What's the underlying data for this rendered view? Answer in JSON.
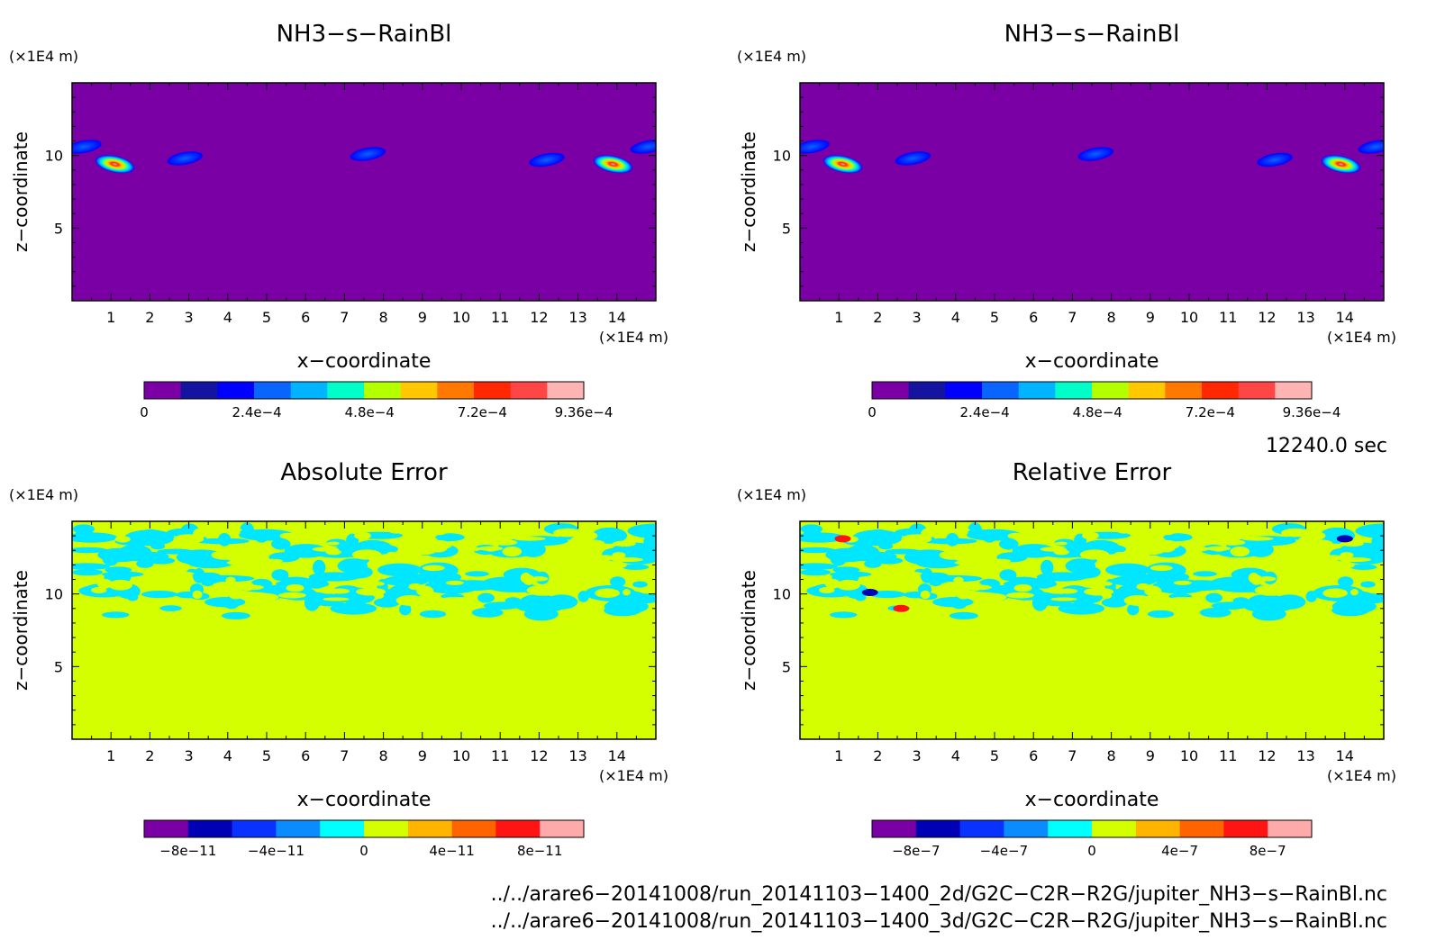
{
  "panels": [
    {
      "title": "NH3−s−RainBl",
      "unit_x": "(×1E4 m)",
      "unit_y": "(×1E4 m)",
      "xlabel": "x−coordinate",
      "ylabel": "z−coordinate",
      "colorbar_labels": [
        "0",
        "2.4e−4",
        "4.8e−4",
        "7.2e−4",
        "9.36e−4"
      ]
    },
    {
      "title": "NH3−s−RainBl",
      "unit_x": "(×1E4 m)",
      "unit_y": "(×1E4 m)",
      "xlabel": "x−coordinate",
      "ylabel": "z−coordinate",
      "colorbar_labels": [
        "0",
        "2.4e−4",
        "4.8e−4",
        "7.2e−4",
        "9.36e−4"
      ]
    },
    {
      "title": "Absolute Error",
      "unit_x": "(×1E4 m)",
      "unit_y": "(×1E4 m)",
      "xlabel": "x−coordinate",
      "ylabel": "z−coordinate",
      "colorbar_labels": [
        "−8e−11",
        "−4e−11",
        "0",
        "4e−11",
        "8e−11"
      ]
    },
    {
      "title": "Relative Error",
      "unit_x": "(×1E4 m)",
      "unit_y": "(×1E4 m)",
      "xlabel": "x−coordinate",
      "ylabel": "z−coordinate",
      "colorbar_labels": [
        "−8e−7",
        "−4e−7",
        "0",
        "4e−7",
        "8e−7"
      ]
    }
  ],
  "time_label": "12240.0 sec",
  "file_paths": [
    "../../arare6−20141008/run_20141103−1400_2d/G2C−C2R−R2G/jupiter_NH3−s−RainBl.nc",
    "../../arare6−20141008/run_20141103−1400_3d/G2C−C2R−R2G/jupiter_NH3−s−RainBl.nc"
  ],
  "colors": {
    "value_background": "#7a00a5",
    "error_background": "#d4ff00",
    "error_patch": "#00e6ff",
    "value_scale": [
      "#7a00a5",
      "#1414a0",
      "#0000ff",
      "#0a64ff",
      "#00b4ff",
      "#00ffc8",
      "#b4ff00",
      "#ffc800",
      "#ff7800",
      "#ff2800",
      "#ff4646",
      "#ffb4b4"
    ],
    "error_scale": [
      "#7a00a5",
      "#0000b4",
      "#0a32ff",
      "#0a8cff",
      "#00ffff",
      "#d4ff00",
      "#ffb400",
      "#ff6400",
      "#ff1414",
      "#ffaaaa"
    ]
  },
  "chart_data": [
    {
      "type": "heatmap",
      "title": "NH3−s−RainBl",
      "xlabel": "x−coordinate",
      "ylabel": "z−coordinate",
      "xlim": [
        0,
        15
      ],
      "ylim": [
        0,
        15
      ],
      "x_ticks": [
        1,
        2,
        3,
        4,
        5,
        6,
        7,
        8,
        9,
        10,
        11,
        12,
        13,
        14
      ],
      "y_ticks": [
        5,
        10
      ],
      "colorbar": {
        "min": 0,
        "max": 0.000936,
        "ticks": [
          0,
          0.00024,
          0.00048,
          0.00072,
          0.000936
        ]
      },
      "features": [
        {
          "x": 1.1,
          "z": 9.4,
          "peak": 0.000936
        },
        {
          "x": 13.9,
          "z": 9.4,
          "peak": 0.000936
        },
        {
          "x": 2.9,
          "z": 9.8,
          "peak": 0.00012
        },
        {
          "x": 12.2,
          "z": 9.7,
          "peak": 0.00012
        },
        {
          "x": 7.6,
          "z": 10.1,
          "peak": 8e-05
        },
        {
          "x": 0.3,
          "z": 10.6,
          "peak": 0.00024
        },
        {
          "x": 14.8,
          "z": 10.6,
          "peak": 0.00024
        }
      ]
    },
    {
      "type": "heatmap",
      "title": "NH3−s−RainBl",
      "xlabel": "x−coordinate",
      "ylabel": "z−coordinate",
      "xlim": [
        0,
        15
      ],
      "ylim": [
        0,
        15
      ],
      "x_ticks": [
        1,
        2,
        3,
        4,
        5,
        6,
        7,
        8,
        9,
        10,
        11,
        12,
        13,
        14
      ],
      "y_ticks": [
        5,
        10
      ],
      "colorbar": {
        "min": 0,
        "max": 0.000936,
        "ticks": [
          0,
          0.00024,
          0.00048,
          0.00072,
          0.000936
        ]
      },
      "features": [
        {
          "x": 1.1,
          "z": 9.4,
          "peak": 0.000936
        },
        {
          "x": 13.9,
          "z": 9.4,
          "peak": 0.000936
        },
        {
          "x": 2.9,
          "z": 9.8,
          "peak": 0.00012
        },
        {
          "x": 12.2,
          "z": 9.7,
          "peak": 0.00012
        },
        {
          "x": 7.6,
          "z": 10.1,
          "peak": 8e-05
        },
        {
          "x": 0.3,
          "z": 10.6,
          "peak": 0.00024
        },
        {
          "x": 14.8,
          "z": 10.6,
          "peak": 0.00024
        }
      ]
    },
    {
      "type": "heatmap",
      "title": "Absolute Error",
      "xlabel": "x−coordinate",
      "ylabel": "z−coordinate",
      "xlim": [
        0,
        15
      ],
      "ylim": [
        0,
        15
      ],
      "x_ticks": [
        1,
        2,
        3,
        4,
        5,
        6,
        7,
        8,
        9,
        10,
        11,
        12,
        13,
        14
      ],
      "y_ticks": [
        5,
        10
      ],
      "colorbar": {
        "min": -1e-10,
        "max": 1e-10,
        "ticks": [
          -8e-11,
          -4e-11,
          0,
          4e-11,
          8e-11
        ]
      },
      "noise_band_z": [
        8.5,
        14.5
      ],
      "noise_value": -1e-11
    },
    {
      "type": "heatmap",
      "title": "Relative Error",
      "xlabel": "x−coordinate",
      "ylabel": "z−coordinate",
      "xlim": [
        0,
        15
      ],
      "ylim": [
        0,
        15
      ],
      "x_ticks": [
        1,
        2,
        3,
        4,
        5,
        6,
        7,
        8,
        9,
        10,
        11,
        12,
        13,
        14
      ],
      "y_ticks": [
        5,
        10
      ],
      "colorbar": {
        "min": -1e-06,
        "max": 1e-06,
        "ticks": [
          -8e-07,
          -4e-07,
          0,
          4e-07,
          8e-07
        ]
      },
      "noise_band_z": [
        8.5,
        14.5
      ],
      "noise_value": -1e-07,
      "features": [
        {
          "x": 1.1,
          "z": 13.8,
          "value": 8e-07
        },
        {
          "x": 1.8,
          "z": 10.1,
          "value": -8e-07
        },
        {
          "x": 2.6,
          "z": 9.0,
          "value": 8e-07
        },
        {
          "x": 14.0,
          "z": 13.8,
          "value": -6e-07
        }
      ]
    }
  ]
}
